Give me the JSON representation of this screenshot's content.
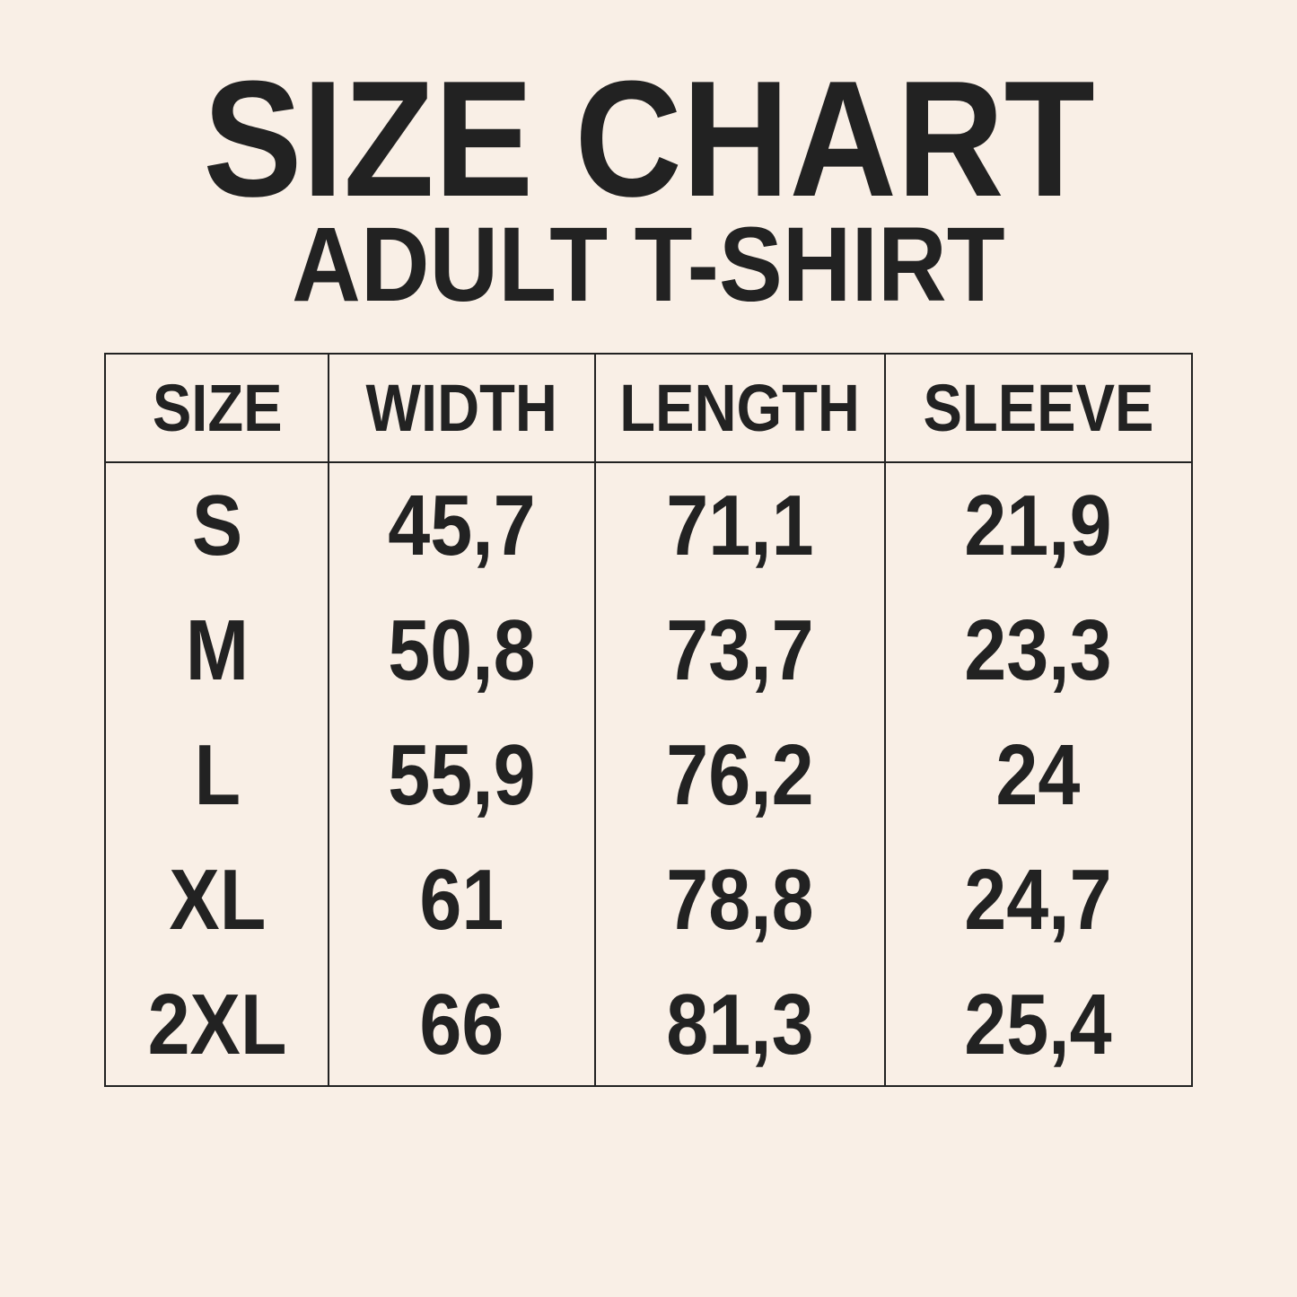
{
  "title": "SIZE CHART",
  "subtitle": "ADULT T-SHIRT",
  "colors": {
    "background": "#f9efe6",
    "text": "#222222"
  },
  "table": {
    "headers": [
      "SIZE",
      "WIDTH",
      "LENGTH",
      "SLEEVE"
    ],
    "rows": [
      [
        "S",
        "45,7",
        "71,1",
        "21,9"
      ],
      [
        "M",
        "50,8",
        "73,7",
        "23,3"
      ],
      [
        "L",
        "55,9",
        "76,2",
        "24"
      ],
      [
        "XL",
        "61",
        "78,8",
        "24,7"
      ],
      [
        "2XL",
        "66",
        "81,3",
        "25,4"
      ]
    ]
  }
}
